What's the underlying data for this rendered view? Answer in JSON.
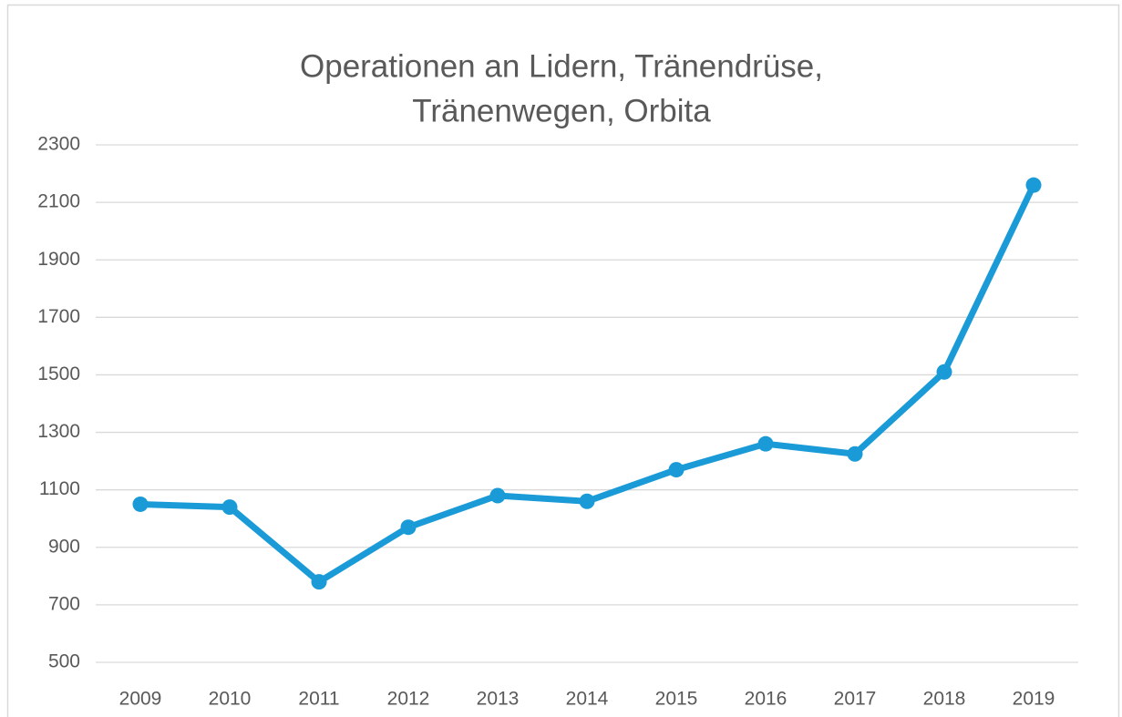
{
  "chart_data": {
    "type": "line",
    "title": [
      "Operationen an Lidern, Tränendrüse,",
      "Tränenwegen, Orbita"
    ],
    "categories": [
      "2009",
      "2010",
      "2011",
      "2012",
      "2013",
      "2014",
      "2015",
      "2016",
      "2017",
      "2018",
      "2019"
    ],
    "series": [
      {
        "color": "#1a9bd7",
        "values": [
          1050,
          1040,
          780,
          970,
          1080,
          1060,
          1170,
          1260,
          1225,
          1510,
          2160
        ]
      }
    ],
    "ylim": [
      500,
      2300
    ],
    "yticks": [
      500,
      700,
      900,
      1100,
      1300,
      1500,
      1700,
      1900,
      2100,
      2300
    ],
    "grid": true
  }
}
